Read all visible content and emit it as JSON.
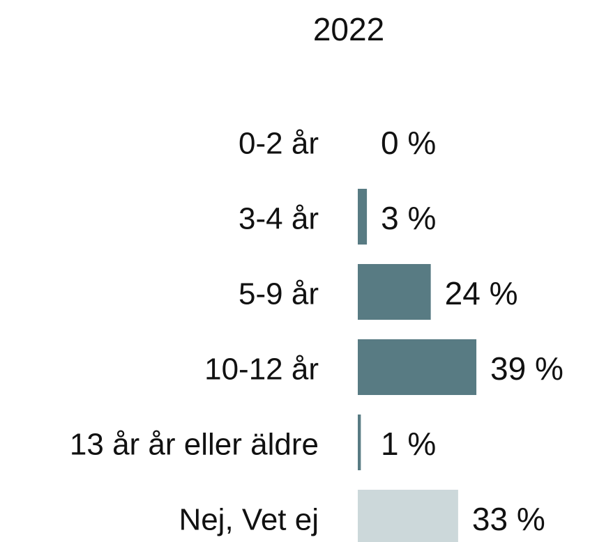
{
  "chart_data": {
    "type": "bar",
    "orientation": "horizontal",
    "title": "2022",
    "categories": [
      "0-2 år",
      "3-4 år",
      "5-9 år",
      "10-12 år",
      "13 år år eller äldre",
      "Nej, Vet ej"
    ],
    "values": [
      0,
      3,
      24,
      39,
      1,
      33
    ],
    "value_labels": [
      "0 %",
      "3 %",
      "24 %",
      "39 %",
      "1 %",
      "33 %"
    ],
    "colors": [
      "#587b83",
      "#587b83",
      "#587b83",
      "#587b83",
      "#587b83",
      "#ccd8da"
    ]
  }
}
